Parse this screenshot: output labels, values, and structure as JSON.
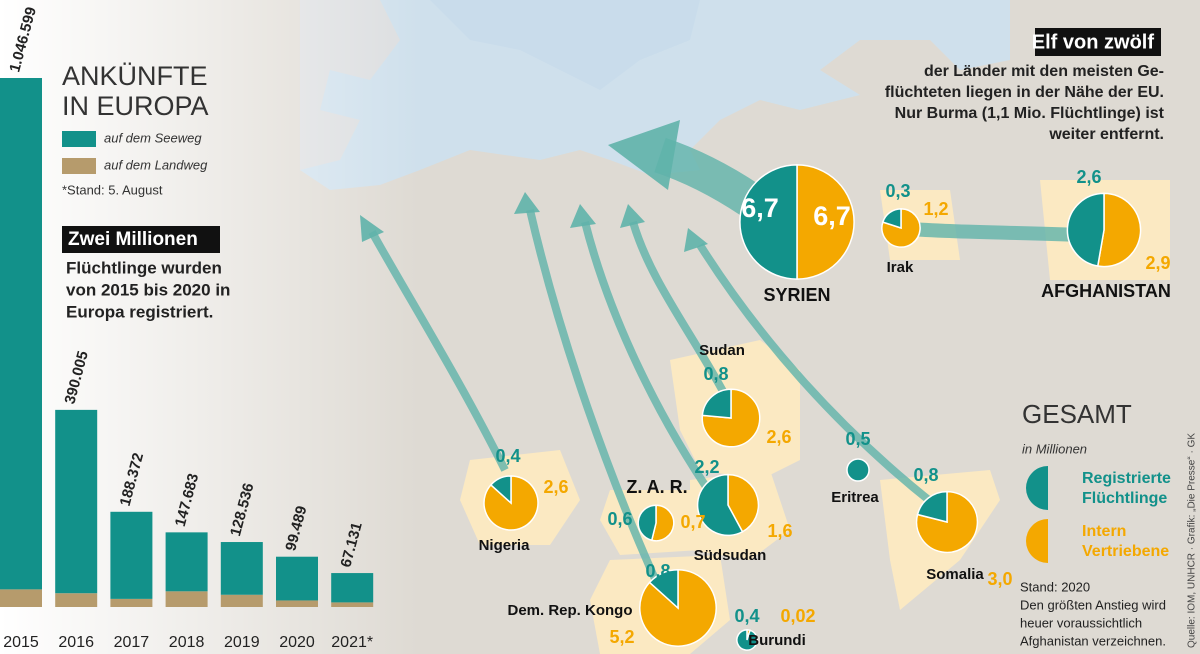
{
  "chart_data": [
    {
      "type": "bar",
      "title": [
        "ANKÜNFTE",
        "IN EUROPA"
      ],
      "note": "*Stand: 5. August",
      "categories": [
        "2015",
        "2016",
        "2017",
        "2018",
        "2019",
        "2020",
        "2021*"
      ],
      "series": [
        {
          "name": "auf dem Seeweg",
          "color": "#12918a",
          "values": [
            1011712,
            362753,
            172324,
            116647,
            104324,
            86513,
            58000
          ]
        },
        {
          "name": "auf dem Landweg",
          "color": "#b69b6c",
          "values": [
            34887,
            27252,
            16048,
            31036,
            24212,
            12976,
            9131
          ]
        }
      ],
      "totals": [
        1046599,
        390005,
        188372,
        147683,
        128536,
        99489,
        67131
      ],
      "value_labels": [
        "1.046.599",
        "390.005",
        "188.372",
        "147.683",
        "128.536",
        "99.489",
        "67.131"
      ],
      "annotation": {
        "title": "Zwei Millionen",
        "lines": [
          "Flüchtlinge wurden",
          "von 2015 bis 2020 in",
          "Europa registriert."
        ]
      }
    },
    {
      "type": "pie",
      "title": "GESAMT",
      "subtitle": "in Millionen",
      "series": [
        {
          "name": [
            "Registrierte",
            "Flüchtlinge"
          ],
          "color": "#12918a"
        },
        {
          "name": [
            "Intern",
            "Vertriebene"
          ],
          "color": "#f4a800"
        }
      ],
      "pies": [
        {
          "name": "SYRIEN",
          "values": [
            6.7,
            6.7
          ],
          "value_labels": [
            "6,7",
            "6,7"
          ]
        },
        {
          "name": "Irak",
          "values": [
            0.3,
            1.2
          ],
          "value_labels": [
            "0,3",
            "1,2"
          ]
        },
        {
          "name": "AFGHANISTAN",
          "values": [
            2.6,
            2.9
          ],
          "value_labels": [
            "2,6",
            "2,9"
          ]
        },
        {
          "name": "Sudan",
          "values": [
            0.8,
            2.6
          ],
          "value_labels": [
            "0,8",
            "2,6"
          ]
        },
        {
          "name": "Südsudan",
          "values": [
            2.2,
            1.6
          ],
          "value_labels": [
            "2,2",
            "1,6"
          ]
        },
        {
          "name": "Z. A. R.",
          "values": [
            0.6,
            0.7
          ],
          "value_labels": [
            "0,6",
            "0,7"
          ]
        },
        {
          "name": "Nigeria",
          "values": [
            0.4,
            2.6
          ],
          "value_labels": [
            "0,4",
            "2,6"
          ]
        },
        {
          "name": "Eritrea",
          "values": [
            0.5
          ],
          "value_labels": [
            "0,5"
          ]
        },
        {
          "name": "Somalia",
          "values": [
            0.8,
            3.0
          ],
          "value_labels": [
            "0,8",
            "3,0"
          ]
        },
        {
          "name": "Dem. Rep. Kongo",
          "values": [
            0.8,
            5.2
          ],
          "value_labels": [
            "0,8",
            "5,2"
          ]
        },
        {
          "name": "Burundi",
          "values": [
            0.4,
            0.02
          ],
          "value_labels": [
            "0,4",
            "0,02"
          ]
        }
      ],
      "annotation": {
        "title": "Elf von zwölf",
        "lines": [
          "der Länder mit den meisten Ge-",
          "flüchteten liegen in der Nähe der EU.",
          "Nur Burma (1,1 Mio. Flüchtlinge) ist",
          "weiter entfernt."
        ]
      },
      "note": [
        "Stand: 2020",
        "Den größten Anstieg wird",
        "heuer voraussichtlich",
        "Afghanistan verzeichnen."
      ],
      "source": "Quelle: IOM, UNHCR · Grafik: „Die Presse“ · GK"
    }
  ]
}
